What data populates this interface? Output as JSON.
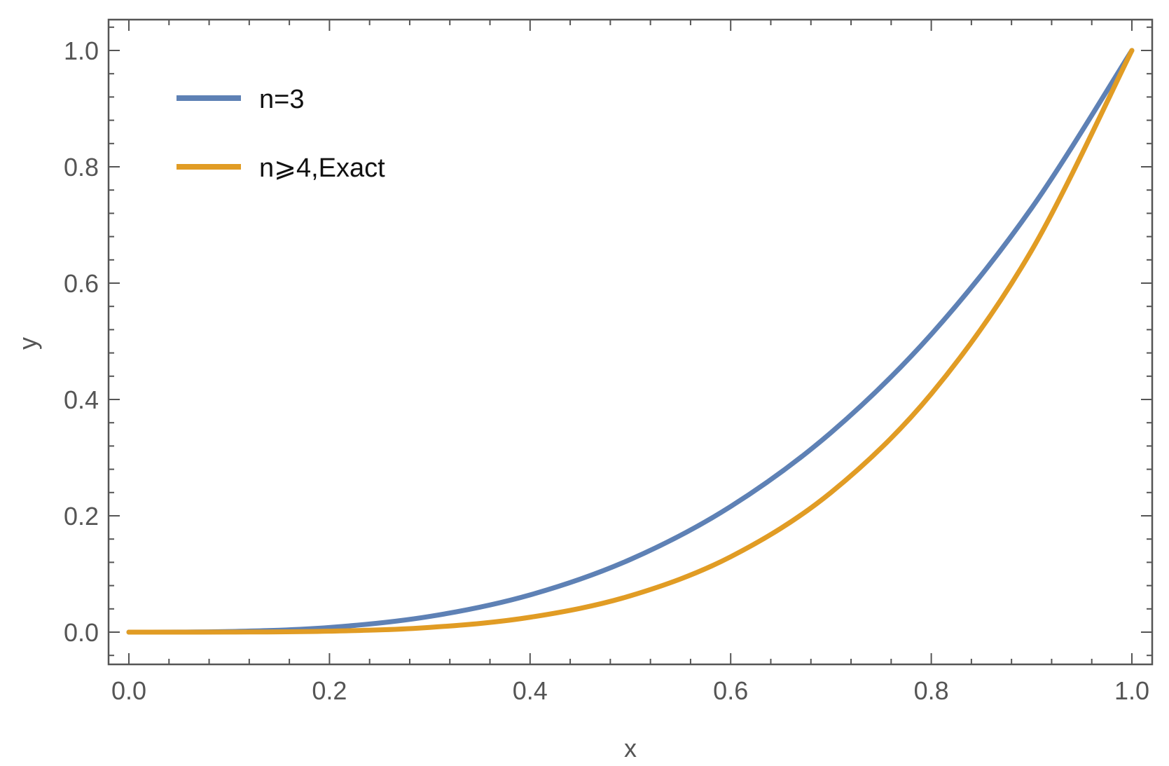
{
  "chart_data": {
    "type": "line",
    "xlabel": "x",
    "ylabel": "y",
    "xlim": [
      0.0,
      1.0
    ],
    "ylim": [
      0.0,
      1.0
    ],
    "x_ticks": [
      "0.0",
      "0.2",
      "0.4",
      "0.6",
      "0.8",
      "1.0"
    ],
    "y_ticks": [
      "0.0",
      "0.2",
      "0.4",
      "0.6",
      "0.8",
      "1.0"
    ],
    "grid": false,
    "legend_position": "top-left",
    "x": [
      0.0,
      0.1,
      0.2,
      0.3,
      0.4,
      0.5,
      0.6,
      0.7,
      0.8,
      0.9,
      1.0
    ],
    "series": [
      {
        "name": "n=3",
        "color": "#5e81b5",
        "values": [
          0.0,
          0.001,
          0.008,
          0.027,
          0.064,
          0.125,
          0.216,
          0.343,
          0.512,
          0.729,
          1.0
        ]
      },
      {
        "name": "n⩾4,Exact",
        "color": "#e19c24",
        "values": [
          0.0,
          0.0001,
          0.0016,
          0.0081,
          0.0256,
          0.0625,
          0.1296,
          0.2401,
          0.4096,
          0.6561,
          1.0
        ]
      }
    ]
  }
}
